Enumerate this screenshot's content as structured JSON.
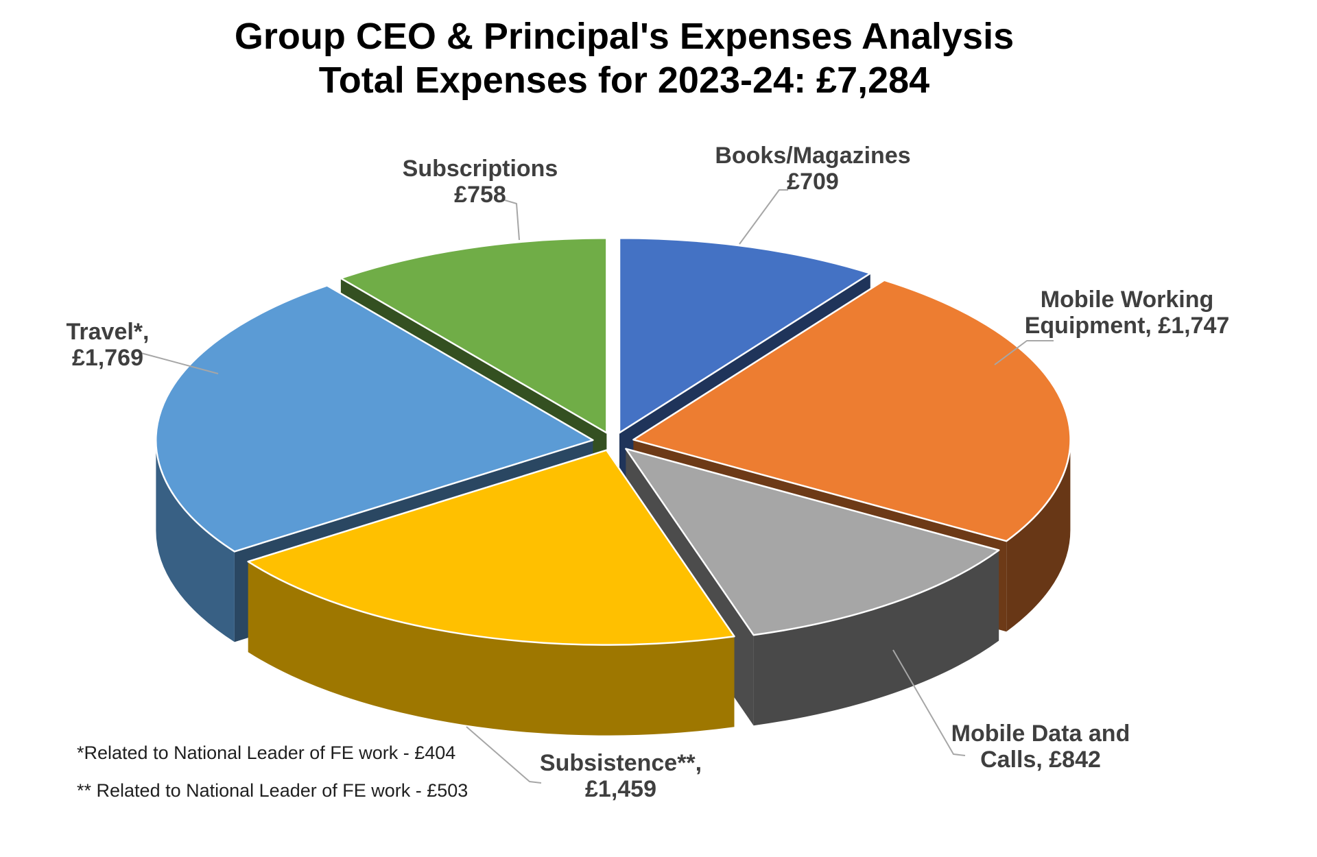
{
  "page": {
    "background_color": "#ffffff",
    "label_text_color": "#3f3f3f",
    "leader_line_color": "#a6a6a6"
  },
  "chart_data": {
    "type": "pie",
    "style": "3d-exploded",
    "title_line1": "Group CEO & Principal's Expenses Analysis",
    "title_line2": "Total Expenses for 2023-24: £7,284",
    "total": 7284,
    "currency": "£",
    "legend_position": "none",
    "slices": [
      {
        "label": "Books/Magazines",
        "value": 709,
        "color": "#4472C4",
        "label_lines": [
          "Books/Magazines",
          "£709"
        ]
      },
      {
        "label": "Mobile Working Equipment",
        "value": 1747,
        "color": "#ED7D31",
        "label_lines": [
          "Mobile Working",
          "Equipment, £1,747"
        ]
      },
      {
        "label": "Mobile Data and Calls",
        "value": 842,
        "color": "#A6A6A6",
        "label_lines": [
          "Mobile Data and",
          "Calls, £842"
        ]
      },
      {
        "label": "Subsistence**",
        "value": 1459,
        "color": "#FFC000",
        "label_lines": [
          "Subsistence**,",
          "£1,459"
        ]
      },
      {
        "label": "Travel*",
        "value": 1769,
        "color": "#5B9BD5",
        "label_lines": [
          "Travel*,",
          "£1,769"
        ]
      },
      {
        "label": "Subscriptions",
        "value": 758,
        "color": "#70AD47",
        "label_lines": [
          "Subscriptions",
          "£758"
        ]
      }
    ],
    "footnotes": [
      "*Related to National Leader of FE work - £404",
      "** Related to National Leader of FE work - £503"
    ]
  }
}
